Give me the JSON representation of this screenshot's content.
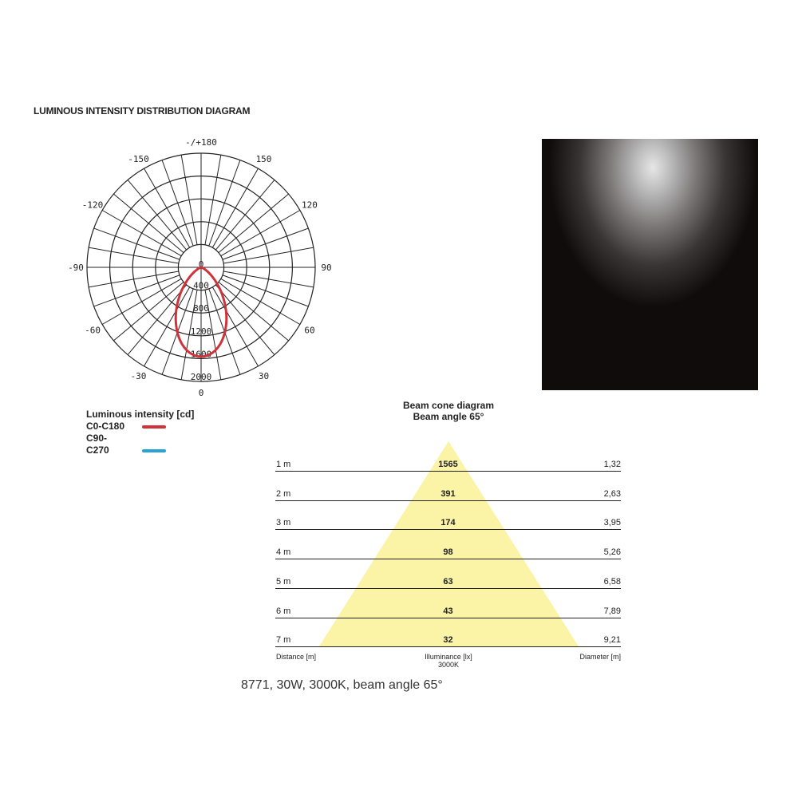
{
  "title": "LUMINOUS INTENSITY DISTRIBUTION DIAGRAM",
  "chart_data": {
    "type": "polar",
    "angle_labels": [
      "-/+180",
      "150",
      "120",
      "90",
      "60",
      "30",
      "0",
      "-30",
      "-60",
      "-90",
      "-120",
      "-150"
    ],
    "radial_ticks": [
      "0",
      "400",
      "800",
      "1200",
      "1600",
      "2000"
    ],
    "radial_range": [
      0,
      2000
    ],
    "unit": "cd",
    "series": [
      {
        "name": "C0-C180",
        "color": "#d0323a",
        "angles": [
          -60,
          -50,
          -40,
          -32.5,
          -30,
          -20,
          -10,
          0,
          10,
          20,
          30,
          32.5,
          40,
          50,
          60
        ],
        "values": [
          98,
          270,
          540,
          783,
          880,
          1220,
          1470,
          1565,
          1470,
          1220,
          880,
          783,
          540,
          270,
          98
        ]
      },
      {
        "name": "C90-C270",
        "color": "#29a3d6",
        "angles": [
          -60,
          -50,
          -40,
          -32.5,
          -30,
          -20,
          -10,
          0,
          10,
          20,
          30,
          32.5,
          40,
          50,
          60
        ],
        "values": [
          95,
          265,
          535,
          780,
          875,
          1215,
          1468,
          1565,
          1468,
          1215,
          875,
          780,
          535,
          265,
          95
        ]
      }
    ]
  },
  "legend": {
    "title": "Luminous intensity [cd]",
    "items": [
      {
        "label": "C0-C180",
        "color": "#d0323a"
      },
      {
        "label": "C90-C270",
        "color": "#29a3d6"
      }
    ]
  },
  "cone": {
    "title": "Beam cone diagram",
    "subtitle": "Beam angle 65°",
    "fill": "#fbf3a6",
    "rows": [
      {
        "distance": "1 m",
        "illuminance": "1565",
        "diameter": "1,32"
      },
      {
        "distance": "2 m",
        "illuminance": "391",
        "diameter": "2,63"
      },
      {
        "distance": "3 m",
        "illuminance": "174",
        "diameter": "3,95"
      },
      {
        "distance": "4 m",
        "illuminance": "98",
        "diameter": "5,26"
      },
      {
        "distance": "5 m",
        "illuminance": "63",
        "diameter": "6,58"
      },
      {
        "distance": "6 m",
        "illuminance": "43",
        "diameter": "7,89"
      },
      {
        "distance": "7 m",
        "illuminance": "32",
        "diameter": "9,21"
      }
    ],
    "footer": {
      "distance": "Distance [m]",
      "illuminance": "Illuminance [lx]",
      "cct": "3000K",
      "diameter": "Diameter [m]"
    }
  },
  "caption": "8771, 30W, 3000K, beam angle 65°"
}
